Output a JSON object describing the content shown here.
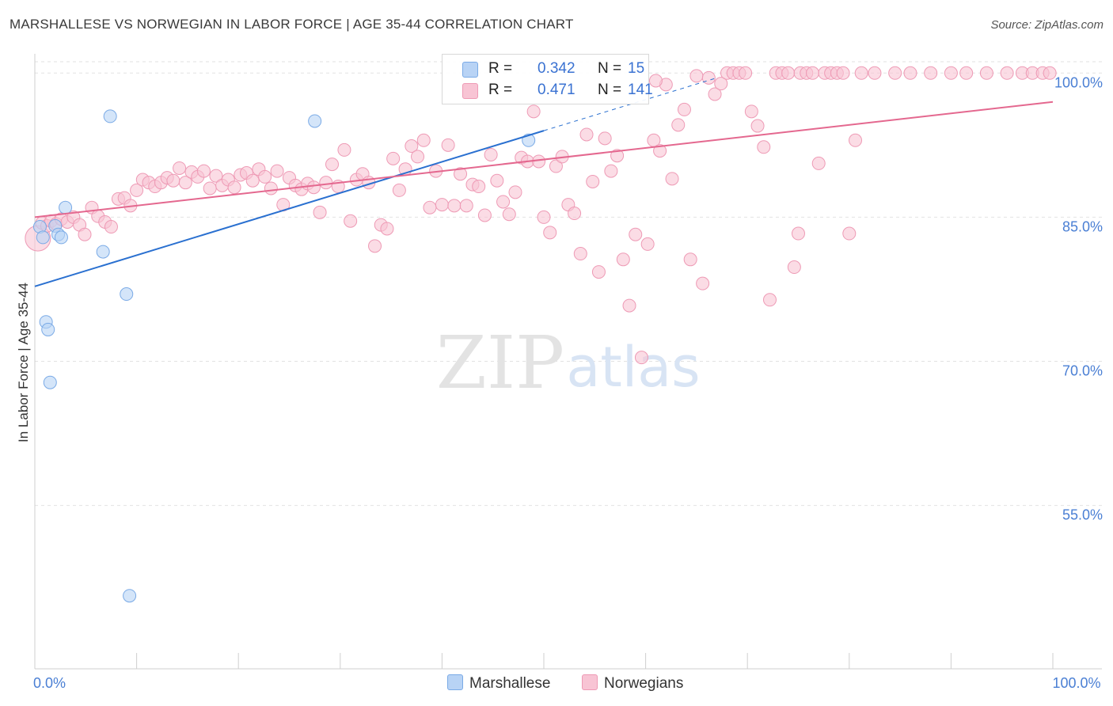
{
  "title": "MARSHALLESE VS NORWEGIAN IN LABOR FORCE | AGE 35-44 CORRELATION CHART",
  "source": "Source: ZipAtlas.com",
  "watermark": {
    "zip": "ZIP",
    "atlas": "atlas"
  },
  "colors": {
    "marshallese_fill": "#b8d3f5",
    "marshallese_stroke": "#7aaae6",
    "marshallese_line": "#2a70d0",
    "norwegian_fill": "#f8c4d4",
    "norwegian_stroke": "#ee9ab5",
    "norwegian_line": "#e4688f",
    "stat_value": "#3a72d2",
    "tick_label": "#4a7fd4"
  },
  "stats_legend": {
    "rows": [
      {
        "series": "marshallese",
        "r_label": "R =",
        "r_value": "0.342",
        "n_label": "N =",
        "n_value": "15"
      },
      {
        "series": "norwegian",
        "r_label": "R =",
        "r_value": "0.471",
        "n_label": "N =",
        "n_value": "141"
      }
    ]
  },
  "bottom_legend": {
    "marshallese": "Marshallese",
    "norwegians": "Norwegians"
  },
  "chart_data": {
    "type": "scatter",
    "xlabel": "",
    "ylabel": "In Labor Force | Age 35-44",
    "xlim": [
      0,
      100
    ],
    "ylim": [
      38,
      102
    ],
    "x_tick_labels": [
      {
        "value": 0,
        "label": "0.0%"
      },
      {
        "value": 100,
        "label": "100.0%"
      }
    ],
    "x_minor_ticks": [
      0,
      10,
      20,
      30,
      40,
      50,
      60,
      70,
      80,
      90,
      100
    ],
    "y_ticks": [
      {
        "value": 100,
        "label": "100.0%"
      },
      {
        "value": 85,
        "label": "85.0%"
      },
      {
        "value": 70,
        "label": "70.0%"
      },
      {
        "value": 55,
        "label": "55.0%"
      }
    ],
    "grid": true,
    "legend_position": "bottom-center",
    "series": [
      {
        "name": "Marshallese",
        "color_key": "marshallese",
        "r": 0.342,
        "n": 15,
        "trend": {
          "x0": 0,
          "y0": 77.8,
          "x1": 50,
          "y1": 94.0,
          "dashed_to_x": 67,
          "dashed_to_y": 99.5
        },
        "points": [
          [
            0.5,
            84.0
          ],
          [
            0.8,
            82.9
          ],
          [
            1.1,
            74.1
          ],
          [
            1.3,
            73.3
          ],
          [
            1.5,
            67.8
          ],
          [
            2.0,
            84.1
          ],
          [
            2.3,
            83.2
          ],
          [
            2.6,
            82.9
          ],
          [
            3.0,
            86.0
          ],
          [
            6.7,
            81.4
          ],
          [
            7.4,
            95.5
          ],
          [
            9.0,
            77.0
          ],
          [
            9.3,
            45.6
          ],
          [
            27.5,
            95.0
          ],
          [
            48.5,
            93.0
          ]
        ]
      },
      {
        "name": "Norwegians",
        "color_key": "norwegian",
        "r": 0.471,
        "n": 141,
        "trend": {
          "x0": 0,
          "y0": 85.0,
          "x1": 100,
          "y1": 97.0
        },
        "points": [
          [
            0.3,
            82.8
          ],
          [
            0.7,
            84.4
          ],
          [
            1.2,
            84.1
          ],
          [
            1.6,
            84.6
          ],
          [
            2.1,
            84.3
          ],
          [
            2.6,
            84.8
          ],
          [
            3.2,
            84.5
          ],
          [
            3.8,
            85.0
          ],
          [
            4.4,
            84.2
          ],
          [
            4.9,
            83.2
          ],
          [
            5.6,
            86.0
          ],
          [
            6.2,
            85.1
          ],
          [
            6.9,
            84.5
          ],
          [
            7.5,
            84.0
          ],
          [
            8.2,
            86.9
          ],
          [
            8.8,
            87.0
          ],
          [
            9.4,
            86.2
          ],
          [
            10.0,
            87.8
          ],
          [
            10.6,
            88.9
          ],
          [
            11.2,
            88.6
          ],
          [
            11.8,
            88.2
          ],
          [
            12.4,
            88.6
          ],
          [
            13.0,
            89.1
          ],
          [
            13.6,
            88.8
          ],
          [
            14.2,
            90.1
          ],
          [
            14.8,
            88.6
          ],
          [
            15.4,
            89.7
          ],
          [
            16.0,
            89.2
          ],
          [
            16.6,
            89.8
          ],
          [
            17.2,
            88.0
          ],
          [
            17.8,
            89.3
          ],
          [
            18.4,
            88.3
          ],
          [
            19.0,
            88.9
          ],
          [
            19.6,
            88.1
          ],
          [
            20.2,
            89.4
          ],
          [
            20.8,
            89.6
          ],
          [
            21.4,
            88.8
          ],
          [
            22.0,
            90.0
          ],
          [
            22.6,
            89.2
          ],
          [
            23.2,
            88.0
          ],
          [
            23.8,
            89.8
          ],
          [
            24.4,
            86.3
          ],
          [
            25.0,
            89.1
          ],
          [
            25.6,
            88.3
          ],
          [
            26.2,
            87.9
          ],
          [
            26.8,
            88.5
          ],
          [
            27.4,
            88.1
          ],
          [
            28.0,
            85.5
          ],
          [
            28.6,
            88.6
          ],
          [
            29.2,
            90.5
          ],
          [
            29.8,
            88.2
          ],
          [
            30.4,
            92.0
          ],
          [
            31.0,
            84.6
          ],
          [
            31.6,
            88.9
          ],
          [
            32.2,
            89.5
          ],
          [
            32.8,
            88.6
          ],
          [
            33.4,
            82.0
          ],
          [
            34.0,
            84.2
          ],
          [
            34.6,
            83.8
          ],
          [
            35.2,
            91.1
          ],
          [
            35.8,
            87.8
          ],
          [
            36.4,
            90.0
          ],
          [
            37.0,
            92.4
          ],
          [
            37.6,
            91.3
          ],
          [
            38.2,
            93.0
          ],
          [
            38.8,
            86.0
          ],
          [
            39.4,
            89.8
          ],
          [
            40.0,
            86.3
          ],
          [
            40.6,
            92.5
          ],
          [
            41.2,
            86.2
          ],
          [
            41.8,
            89.5
          ],
          [
            42.4,
            86.2
          ],
          [
            43.0,
            88.4
          ],
          [
            43.6,
            88.2
          ],
          [
            44.2,
            85.2
          ],
          [
            44.8,
            91.5
          ],
          [
            45.4,
            88.8
          ],
          [
            46.0,
            86.6
          ],
          [
            46.6,
            85.3
          ],
          [
            47.2,
            87.6
          ],
          [
            47.8,
            91.2
          ],
          [
            48.4,
            90.8
          ],
          [
            49.0,
            96.0
          ],
          [
            49.5,
            90.8
          ],
          [
            50.0,
            85.0
          ],
          [
            50.6,
            83.4
          ],
          [
            51.2,
            90.3
          ],
          [
            51.8,
            91.3
          ],
          [
            52.4,
            86.3
          ],
          [
            53.0,
            85.4
          ],
          [
            53.6,
            81.2
          ],
          [
            54.2,
            93.6
          ],
          [
            54.8,
            88.7
          ],
          [
            55.4,
            79.3
          ],
          [
            56.0,
            93.2
          ],
          [
            56.6,
            89.8
          ],
          [
            57.2,
            91.4
          ],
          [
            57.8,
            80.6
          ],
          [
            58.4,
            75.8
          ],
          [
            59.0,
            83.2
          ],
          [
            59.6,
            70.4
          ],
          [
            60.2,
            82.2
          ],
          [
            60.8,
            93.0
          ],
          [
            61.4,
            91.9
          ],
          [
            62.0,
            98.8
          ],
          [
            62.6,
            89.0
          ],
          [
            63.2,
            94.6
          ],
          [
            63.8,
            96.2
          ],
          [
            64.4,
            80.6
          ],
          [
            65.0,
            99.7
          ],
          [
            65.6,
            78.1
          ],
          [
            66.2,
            99.5
          ],
          [
            66.8,
            97.8
          ],
          [
            67.4,
            98.9
          ],
          [
            68.0,
            100.0
          ],
          [
            68.6,
            100.0
          ],
          [
            69.2,
            100.0
          ],
          [
            69.8,
            100.0
          ],
          [
            70.4,
            96.0
          ],
          [
            71.0,
            94.5
          ],
          [
            71.6,
            92.3
          ],
          [
            72.2,
            76.4
          ],
          [
            72.8,
            100.0
          ],
          [
            73.4,
            100.0
          ],
          [
            74.0,
            100.0
          ],
          [
            74.6,
            79.8
          ],
          [
            75.2,
            100.0
          ],
          [
            75.8,
            100.0
          ],
          [
            76.4,
            100.0
          ],
          [
            77.0,
            90.6
          ],
          [
            77.6,
            100.0
          ],
          [
            78.2,
            100.0
          ],
          [
            78.8,
            100.0
          ],
          [
            79.4,
            100.0
          ],
          [
            80.0,
            83.3
          ],
          [
            80.6,
            93.0
          ],
          [
            81.2,
            100.0
          ],
          [
            82.5,
            100.0
          ],
          [
            84.5,
            100.0
          ],
          [
            86.0,
            100.0
          ],
          [
            88.0,
            100.0
          ],
          [
            90.0,
            100.0
          ],
          [
            91.5,
            100.0
          ],
          [
            93.5,
            100.0
          ],
          [
            95.5,
            100.0
          ],
          [
            97.0,
            100.0
          ],
          [
            98.0,
            100.0
          ],
          [
            99.0,
            100.0
          ],
          [
            99.7,
            100.0
          ],
          [
            61.0,
            99.2
          ],
          [
            75.0,
            83.3
          ]
        ]
      }
    ]
  }
}
